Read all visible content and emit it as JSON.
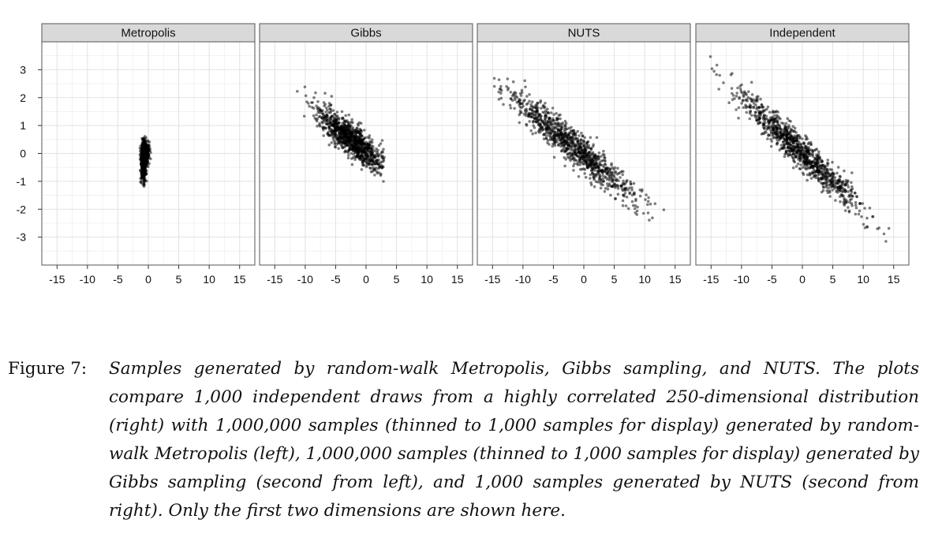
{
  "chart_data": {
    "type": "scatter",
    "facets": [
      {
        "name": "Metropolis",
        "points": {
          "generator": "blob",
          "n": 1000,
          "blocks": [
            {
              "cx": -0.8,
              "cy": -0.35,
              "sx": 0.22,
              "sy": 0.32,
              "w": 0.5
            },
            {
              "cx": -0.5,
              "cy": 0.05,
              "sx": 0.28,
              "sy": 0.18,
              "w": 0.5
            }
          ]
        }
      },
      {
        "name": "Gibbs",
        "points": {
          "generator": "correlated",
          "n": 1000,
          "mean_x": -2.2,
          "mean_y": 0.45,
          "sd_x": 2.9,
          "slope": -0.16,
          "noise_sd": 0.3,
          "clip_x": [
            -13,
            3
          ],
          "clip_y": [
            -1.6,
            4
          ]
        }
      },
      {
        "name": "NUTS",
        "points": {
          "generator": "correlated",
          "n": 1000,
          "mean_x": -1.5,
          "mean_y": 0.2,
          "sd_x": 5.3,
          "slope": -0.175,
          "noise_sd": 0.3,
          "clip_x": [
            -15,
            15
          ],
          "clip_y": [
            -3.5,
            3.6
          ]
        }
      },
      {
        "name": "Independent",
        "points": {
          "generator": "correlated",
          "n": 1000,
          "mean_x": -0.5,
          "mean_y": 0.1,
          "sd_x": 5.2,
          "slope": -0.2,
          "noise_sd": 0.3,
          "clip_x": [
            -16,
            16.5
          ],
          "clip_y": [
            -3.8,
            3.8
          ]
        }
      }
    ],
    "x_ticks": [
      -15,
      -10,
      -5,
      0,
      5,
      10,
      15
    ],
    "y_ticks": [
      3,
      2,
      1,
      0,
      -1,
      -2,
      -3
    ],
    "xlim": [
      -17.5,
      17.5
    ],
    "ylim": [
      -4,
      4
    ],
    "grid": true,
    "point_color": "#000000",
    "point_opacity": 0.5
  },
  "caption": {
    "label": "Figure 7:",
    "text": "Samples generated by random-walk Metropolis, Gibbs sampling, and NUTS. The plots compare 1,000 independent draws from a highly correlated 250-dimensional distribution (right) with 1,000,000 samples (thinned to 1,000 samples for display) generated by random-walk Metropolis (left), 1,000,000 samples (thinned to 1,000 samples for display) generated by Gibbs sampling (second from left), and 1,000 samples generated by NUTS (second from right). Only the first two dimensions are shown here."
  }
}
